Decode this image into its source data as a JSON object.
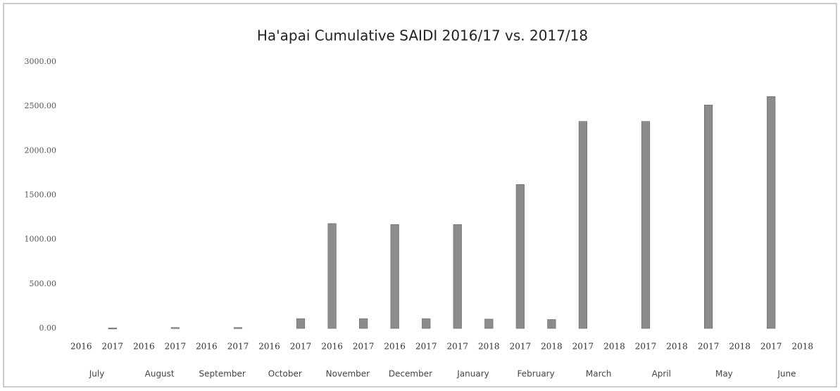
{
  "chart_data": {
    "type": "bar",
    "title": "Ha'apai Cumulative SAIDI 2016/17 vs. 2017/18",
    "categories": [
      "2016",
      "2017",
      "2016",
      "2017",
      "2016",
      "2017",
      "2016",
      "2017",
      "2016",
      "2017",
      "2016",
      "2017",
      "2017",
      "2018",
      "2017",
      "2018",
      "2017",
      "2018",
      "2017",
      "2018",
      "2017",
      "2018",
      "2017",
      "2018"
    ],
    "groups": [
      "July",
      "August",
      "September",
      "October",
      "November",
      "December",
      "January",
      "February",
      "March",
      "April",
      "May",
      "June"
    ],
    "values": [
      null,
      5,
      null,
      10,
      null,
      10,
      null,
      110,
      1180,
      110,
      1170,
      110,
      1170,
      105,
      1620,
      100,
      2330,
      null,
      2330,
      null,
      2515,
      null,
      2610,
      null
    ],
    "color": "#8c8c8c",
    "ylim": [
      0,
      3000
    ],
    "yticks": [
      {
        "value": 0,
        "label": "0.00"
      },
      {
        "value": 500,
        "label": "500.00"
      },
      {
        "value": 1000,
        "label": "1000.00"
      },
      {
        "value": 1500,
        "label": "1500.00"
      },
      {
        "value": 2000,
        "label": "2000.00"
      },
      {
        "value": 2500,
        "label": "2500.00"
      },
      {
        "value": 3000,
        "label": "3000.00"
      }
    ],
    "grid": false
  }
}
